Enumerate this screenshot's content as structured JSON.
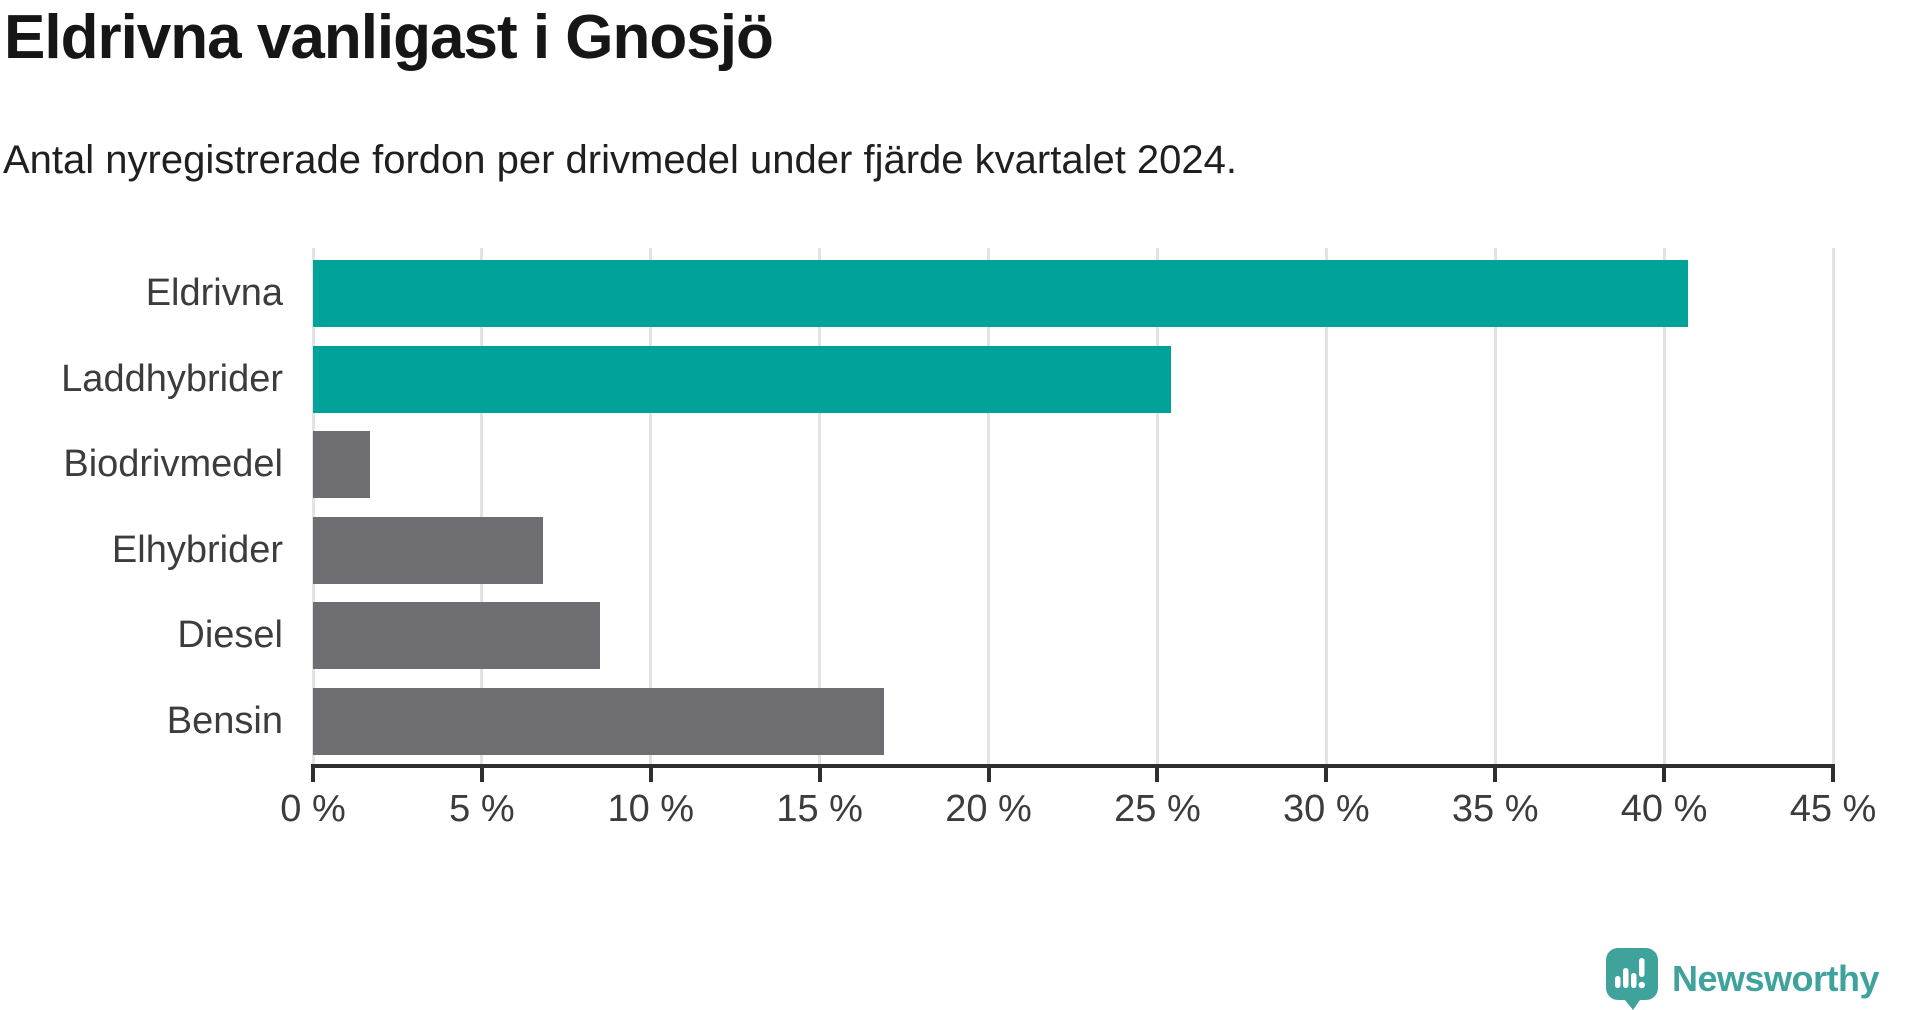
{
  "header": {
    "title": "Eldrivna vanligast i Gnosjö",
    "subtitle": "Antal nyregistrerade fordon per drivmedel under fjärde kvartalet 2024."
  },
  "chart_data": {
    "type": "bar",
    "orientation": "horizontal",
    "title": "Eldrivna vanligast i Gnosjö",
    "subtitle": "Antal nyregistrerade fordon per drivmedel under fjärde kvartalet 2024.",
    "categories": [
      "Eldrivna",
      "Laddhybrider",
      "Biodrivmedel",
      "Elhybrider",
      "Diesel",
      "Bensin"
    ],
    "values": [
      40.7,
      25.4,
      1.7,
      6.8,
      8.5,
      16.9
    ],
    "unit": "%",
    "xlim": [
      0,
      45
    ],
    "x_ticks": [
      0,
      5,
      10,
      15,
      20,
      25,
      30,
      35,
      40,
      45
    ],
    "x_tick_labels": [
      "0 %",
      "5 %",
      "10 %",
      "15 %",
      "20 %",
      "25 %",
      "30 %",
      "35 %",
      "40 %",
      "45 %"
    ],
    "grid": "vertical-on",
    "legend": "none",
    "bar_colors": [
      "#00a29a",
      "#00a29a",
      "#6d6d72",
      "#6d6d72",
      "#6d6d72",
      "#6d6d72"
    ],
    "highlight_color": "#00a29a",
    "default_color": "#6d6d72",
    "gridline_color": "#e3e3e3",
    "axis_color": "#2e2e2e"
  },
  "footer": {
    "brand": "Newsworthy",
    "brand_color": "#3fa39c",
    "logo_icon": "newsworthy-speech-bubble-chart-icon"
  }
}
